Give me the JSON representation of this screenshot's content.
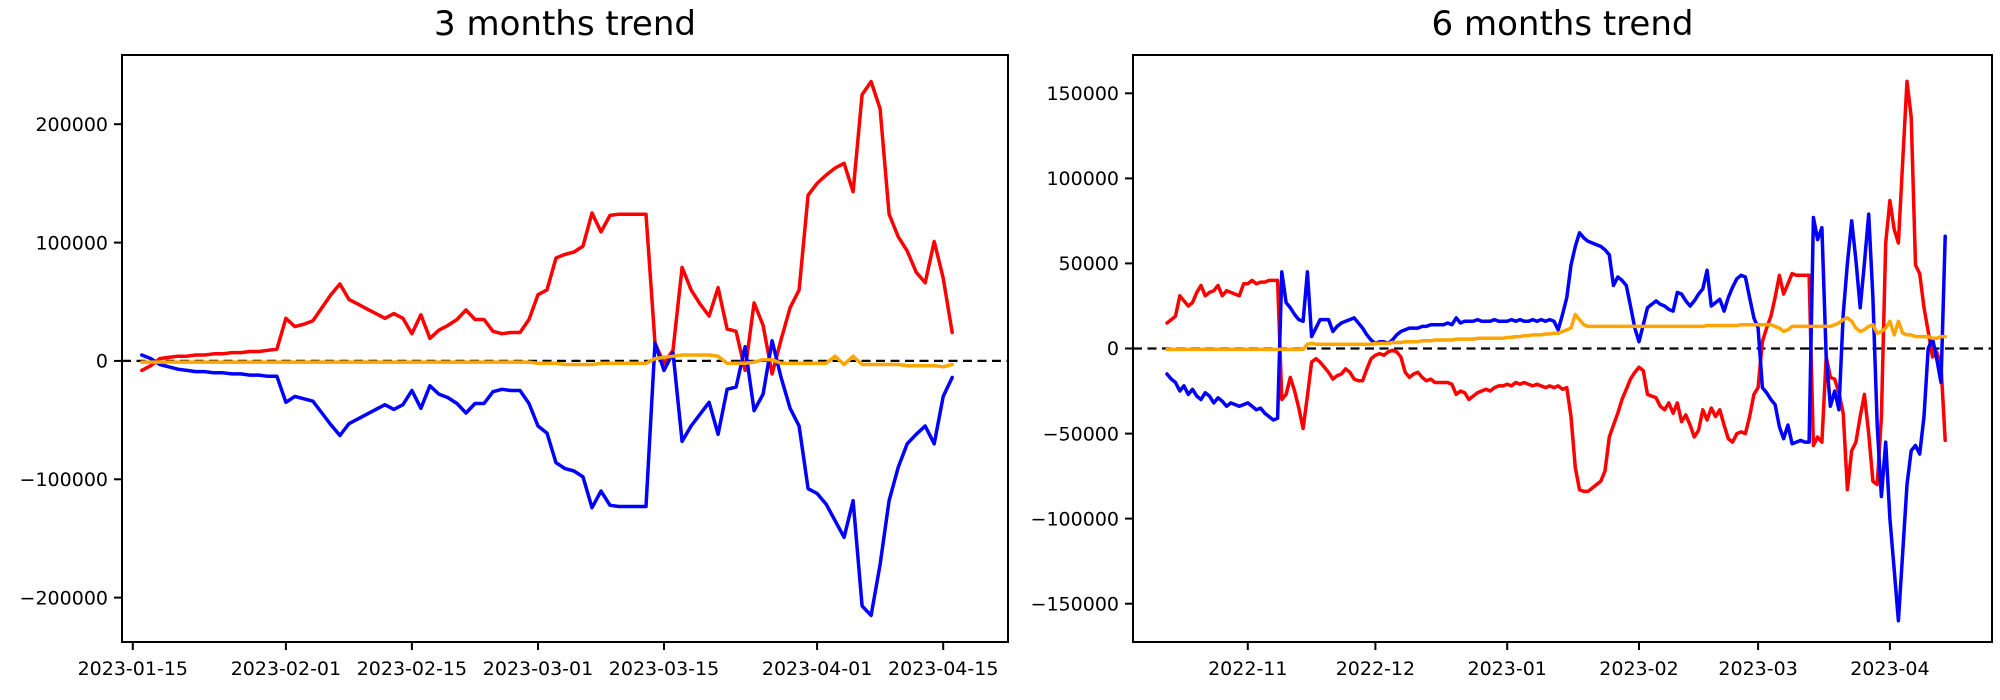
{
  "figure": {
    "background": "#ffffff"
  },
  "chart_data": [
    {
      "type": "line",
      "title": "3 months trend",
      "start_date": "2023-01-16",
      "x_tick_labels": [
        "2023-01-15",
        "2023-02-01",
        "2023-02-15",
        "2023-03-01",
        "2023-03-15",
        "2023-04-01",
        "2023-04-15"
      ],
      "x_tick_days": [
        -1,
        16,
        30,
        44,
        58,
        75,
        89
      ],
      "xlim_days": [
        -2.2,
        96.2
      ],
      "y_ticks": [
        -200000,
        -100000,
        0,
        100000,
        200000
      ],
      "ylim": [
        -237500,
        258500
      ],
      "zero_line": true,
      "grid": false,
      "legend": "none",
      "series": [
        {
          "name": "red",
          "color": "#ff0000",
          "values": [
            -8000,
            -4000,
            2000,
            3000,
            4000,
            4000,
            5000,
            5000,
            6000,
            6000,
            7000,
            7000,
            8000,
            8000,
            9000,
            10000,
            36000,
            29000,
            31000,
            34000,
            45000,
            56000,
            65000,
            52000,
            48000,
            44000,
            40000,
            36000,
            40000,
            36000,
            23000,
            39000,
            19000,
            26000,
            30000,
            35000,
            43000,
            35000,
            35000,
            25000,
            23000,
            24000,
            24000,
            35000,
            56000,
            60000,
            87000,
            90000,
            92000,
            97000,
            125000,
            109000,
            123000,
            124000,
            124000,
            124000,
            124000,
            15000,
            -2000,
            9000,
            79000,
            60000,
            48000,
            38000,
            62000,
            27000,
            25000,
            -8000,
            49000,
            30000,
            -11000,
            18000,
            45000,
            60000,
            140000,
            150000,
            157000,
            163000,
            167000,
            143000,
            225000,
            236000,
            213000,
            124000,
            105000,
            93000,
            75000,
            66000,
            101000,
            70000,
            24000
          ]
        },
        {
          "name": "blue",
          "color": "#0000ff",
          "values": [
            5000,
            2000,
            -3000,
            -5000,
            -7000,
            -8000,
            -9000,
            -9000,
            -10000,
            -10000,
            -11000,
            -11000,
            -12000,
            -12000,
            -13000,
            -13000,
            -35000,
            -30000,
            -32000,
            -34000,
            -44000,
            -54000,
            -63000,
            -53000,
            -49000,
            -45000,
            -41000,
            -37000,
            -41000,
            -37000,
            -25000,
            -40000,
            -21000,
            -28000,
            -31000,
            -36000,
            -44000,
            -36000,
            -36000,
            -26000,
            -24000,
            -25000,
            -25000,
            -36000,
            -55000,
            -61000,
            -86000,
            -91000,
            -93000,
            -98000,
            -124000,
            -110000,
            -122000,
            -123000,
            -123000,
            -123000,
            -123000,
            15000,
            -8000,
            7000,
            -68000,
            -55000,
            -45000,
            -35000,
            -62000,
            -24000,
            -22000,
            12000,
            -42000,
            -28000,
            17000,
            -14000,
            -40000,
            -55000,
            -108000,
            -112000,
            -121000,
            -135000,
            -149000,
            -118000,
            -207000,
            -215000,
            -172000,
            -118000,
            -90000,
            -70000,
            -62000,
            -55000,
            -70000,
            -30000,
            -14000
          ]
        },
        {
          "name": "orange",
          "color": "#ffa500",
          "values": [
            -1000,
            -1000,
            -1000,
            -1000,
            -1000,
            -1000,
            -1000,
            -1000,
            -1000,
            -1000,
            -1000,
            -1000,
            -1000,
            -1000,
            -1000,
            -1000,
            -1000,
            -1000,
            -1000,
            -1000,
            -1000,
            -1000,
            -1000,
            -1000,
            -1000,
            -1000,
            -1000,
            -1000,
            -1000,
            -1000,
            -1000,
            -1000,
            -1000,
            -1000,
            -1000,
            -1000,
            -1000,
            -1000,
            -1000,
            -1000,
            -1000,
            -1000,
            -1000,
            -1000,
            -2000,
            -2000,
            -2000,
            -3000,
            -3000,
            -3000,
            -3000,
            -2000,
            -2000,
            -2000,
            -2000,
            -2000,
            -2000,
            2000,
            3000,
            4000,
            5000,
            5000,
            5000,
            5000,
            4000,
            -2000,
            -2000,
            -2000,
            -1000,
            1000,
            1000,
            -2000,
            -2000,
            -2000,
            -2000,
            -2000,
            -2000,
            4000,
            -3000,
            4000,
            -3000,
            -3000,
            -3000,
            -3000,
            -3000,
            -4000,
            -4000,
            -4000,
            -4000,
            -5000,
            -3000
          ]
        }
      ]
    },
    {
      "type": "line",
      "title": "6 months trend",
      "start_date": "2022-10-13",
      "x_tick_labels": [
        "2022-11",
        "2022-12",
        "2023-01",
        "2023-02",
        "2023-03",
        "2023-04"
      ],
      "x_tick_days": [
        19,
        49,
        80,
        111,
        139,
        170
      ],
      "xlim_days": [
        -8,
        194
      ],
      "y_ticks": [
        -150000,
        -100000,
        -50000,
        0,
        50000,
        100000,
        150000
      ],
      "ylim": [
        -172500,
        172500
      ],
      "zero_line": true,
      "grid": false,
      "legend": "none",
      "series": [
        {
          "name": "red",
          "color": "#ff0000",
          "values": [
            15000,
            17000,
            19000,
            31000,
            28000,
            25000,
            27000,
            33000,
            37000,
            31000,
            33000,
            34000,
            37000,
            31000,
            34000,
            33000,
            32000,
            31000,
            38000,
            38000,
            40000,
            38000,
            39000,
            39000,
            40000,
            40000,
            40000,
            -30000,
            -27000,
            -17000,
            -25000,
            -35000,
            -47000,
            -28000,
            -8000,
            -6000,
            -8000,
            -11000,
            -14000,
            -18000,
            -16000,
            -15000,
            -12000,
            -14000,
            -18000,
            -19000,
            -19000,
            -12000,
            -6000,
            -4000,
            -3000,
            -4000,
            -2000,
            -1000,
            -2000,
            -5000,
            -14000,
            -17000,
            -15000,
            -14000,
            -17000,
            -19000,
            -18000,
            -20000,
            -20000,
            -20000,
            -20000,
            -21000,
            -27000,
            -25000,
            -26000,
            -30000,
            -28000,
            -26000,
            -25000,
            -24000,
            -25000,
            -23000,
            -22000,
            -22000,
            -21000,
            -22000,
            -20000,
            -21000,
            -20000,
            -21000,
            -22000,
            -21000,
            -22000,
            -23000,
            -22000,
            -23000,
            -22000,
            -24000,
            -23000,
            -40000,
            -70000,
            -83000,
            -84000,
            -84000,
            -82000,
            -80000,
            -78000,
            -72000,
            -52000,
            -45000,
            -38000,
            -30000,
            -24000,
            -18000,
            -14000,
            -11000,
            -13000,
            -27000,
            -28000,
            -29000,
            -34000,
            -36000,
            -32000,
            -38000,
            -32000,
            -43000,
            -39000,
            -45000,
            -52000,
            -48000,
            -36000,
            -42000,
            -35000,
            -40000,
            -36000,
            -45000,
            -53000,
            -55000,
            -50000,
            -49000,
            -50000,
            -40000,
            -27000,
            -23000,
            4000,
            12000,
            19000,
            30000,
            43000,
            32000,
            38000,
            44000,
            43000,
            43000,
            43000,
            43000,
            -57000,
            -52000,
            -55000,
            -5000,
            -17000,
            -18000,
            -26000,
            -38000,
            -83000,
            -60000,
            -55000,
            -40000,
            -27000,
            -50000,
            -78000,
            -80000,
            -40000,
            62000,
            87000,
            70000,
            62000,
            110000,
            157000,
            136000,
            49000,
            44000,
            24000,
            10000,
            -5000,
            -2000,
            -10000,
            -54000
          ]
        },
        {
          "name": "blue",
          "color": "#0000ff",
          "values": [
            -15000,
            -18000,
            -20000,
            -25000,
            -22000,
            -27000,
            -24000,
            -28000,
            -30000,
            -26000,
            -28000,
            -32000,
            -29000,
            -31000,
            -34000,
            -32000,
            -33000,
            -34000,
            -33000,
            -32000,
            -34000,
            -36000,
            -35000,
            -38000,
            -40000,
            -42000,
            -41000,
            45000,
            27000,
            24000,
            20000,
            17000,
            16000,
            45000,
            7000,
            12000,
            17000,
            17000,
            17000,
            10000,
            13000,
            15000,
            16000,
            17000,
            18000,
            15000,
            12000,
            8000,
            5000,
            3000,
            4000,
            4000,
            3000,
            5000,
            8000,
            10000,
            11000,
            12000,
            12000,
            12000,
            13000,
            13000,
            14000,
            14000,
            14000,
            14000,
            15000,
            14000,
            18000,
            15000,
            16000,
            16000,
            16000,
            17000,
            16000,
            16000,
            16000,
            17000,
            16000,
            16000,
            16000,
            17000,
            16000,
            17000,
            16000,
            16000,
            17000,
            16000,
            17000,
            16000,
            17000,
            16000,
            11000,
            20000,
            30000,
            49000,
            60000,
            68000,
            65000,
            63000,
            62000,
            61000,
            60000,
            58000,
            55000,
            37000,
            42000,
            40000,
            37000,
            25000,
            12000,
            4000,
            14000,
            24000,
            26000,
            28000,
            26000,
            25000,
            23000,
            22000,
            33000,
            32000,
            28000,
            25000,
            28000,
            32000,
            35000,
            46000,
            25000,
            27000,
            29000,
            22000,
            30000,
            36000,
            41000,
            43000,
            42000,
            30000,
            18000,
            12000,
            -23000,
            -26000,
            -30000,
            -33000,
            -46000,
            -53000,
            -45000,
            -56000,
            -55000,
            -54000,
            -55000,
            -55000,
            77000,
            64000,
            71000,
            -5000,
            -34000,
            -25000,
            -36000,
            20000,
            50000,
            75000,
            52000,
            24000,
            50000,
            79000,
            30000,
            -45000,
            -87000,
            -55000,
            -100000,
            -130000,
            -160000,
            -120000,
            -80000,
            -60000,
            -57000,
            -62000,
            -40000,
            0,
            6000,
            -6000,
            -20000,
            66000
          ]
        },
        {
          "name": "orange",
          "color": "#ffa500",
          "values": [
            -500,
            -500,
            -500,
            -500,
            -500,
            -500,
            -500,
            -500,
            -500,
            -500,
            -500,
            -500,
            -500,
            -500,
            -500,
            -500,
            -500,
            -500,
            -500,
            -500,
            -500,
            -500,
            -500,
            -500,
            -500,
            -500,
            -500,
            -500,
            -500,
            -500,
            -500,
            -500,
            -500,
            2500,
            3000,
            2500,
            2500,
            2500,
            2500,
            2500,
            2500,
            2500,
            2500,
            2500,
            2500,
            2500,
            2500,
            2500,
            2500,
            3000,
            3000,
            3000,
            3000,
            3500,
            3500,
            3500,
            4000,
            4000,
            4000,
            4000,
            4500,
            4500,
            4500,
            5000,
            5000,
            5000,
            5000,
            5000,
            5500,
            5500,
            5500,
            5500,
            5500,
            6000,
            6000,
            6000,
            6000,
            6000,
            6000,
            6000,
            6500,
            6500,
            7000,
            7000,
            7500,
            7500,
            8000,
            8000,
            8000,
            8500,
            8500,
            9000,
            9000,
            10000,
            11000,
            12000,
            20000,
            17000,
            14000,
            13000,
            13000,
            13000,
            13000,
            13000,
            13000,
            13000,
            13000,
            13000,
            13000,
            13000,
            13000,
            13000,
            13000,
            13000,
            13000,
            13000,
            13000,
            13000,
            13000,
            13000,
            13000,
            13000,
            13000,
            13000,
            13000,
            13000,
            13000,
            13500,
            13500,
            13500,
            13500,
            13500,
            13500,
            13500,
            13500,
            14000,
            14000,
            14000,
            14000,
            14000,
            14000,
            14000,
            14000,
            13000,
            12000,
            10000,
            11000,
            13000,
            13000,
            13000,
            13000,
            13000,
            13000,
            13000,
            13000,
            13000,
            13000,
            14000,
            15000,
            17000,
            18000,
            16000,
            12000,
            10000,
            11000,
            13000,
            14000,
            9000,
            10000,
            12000,
            16000,
            8000,
            16000,
            9000,
            8000,
            8000,
            7000,
            7000,
            7000,
            7000,
            6000,
            6000,
            7000,
            7000
          ]
        }
      ]
    }
  ]
}
